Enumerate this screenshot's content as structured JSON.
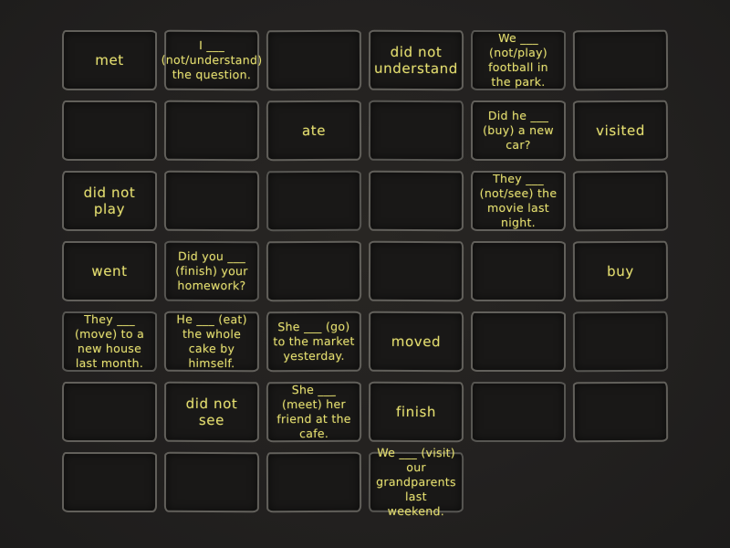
{
  "app": {
    "name": "past-simple-match-up-game"
  },
  "colors": {
    "background": "#232120",
    "card_fill": "#191817",
    "card_border": "#9e9c94",
    "card_text": "#e3dd6f"
  },
  "grid": {
    "columns": 6,
    "rows": 7,
    "card_count": 40
  },
  "cards": [
    {
      "row": 1,
      "col": 1,
      "text": "met"
    },
    {
      "row": 1,
      "col": 2,
      "text": "I ___ (not/understand) the question."
    },
    {
      "row": 1,
      "col": 3,
      "text": ""
    },
    {
      "row": 1,
      "col": 4,
      "text": "did not understand"
    },
    {
      "row": 1,
      "col": 5,
      "text": "We ___ (not/play) football in the park."
    },
    {
      "row": 1,
      "col": 6,
      "text": ""
    },
    {
      "row": 2,
      "col": 1,
      "text": ""
    },
    {
      "row": 2,
      "col": 2,
      "text": ""
    },
    {
      "row": 2,
      "col": 3,
      "text": "ate"
    },
    {
      "row": 2,
      "col": 4,
      "text": ""
    },
    {
      "row": 2,
      "col": 5,
      "text": "Did he ___ (buy) a new car?"
    },
    {
      "row": 2,
      "col": 6,
      "text": "visited"
    },
    {
      "row": 3,
      "col": 1,
      "text": "did not play"
    },
    {
      "row": 3,
      "col": 2,
      "text": ""
    },
    {
      "row": 3,
      "col": 3,
      "text": ""
    },
    {
      "row": 3,
      "col": 4,
      "text": ""
    },
    {
      "row": 3,
      "col": 5,
      "text": "They ___ (not/see) the movie last night."
    },
    {
      "row": 3,
      "col": 6,
      "text": ""
    },
    {
      "row": 4,
      "col": 1,
      "text": "went"
    },
    {
      "row": 4,
      "col": 2,
      "text": "Did you ___ (finish) your homework?"
    },
    {
      "row": 4,
      "col": 3,
      "text": ""
    },
    {
      "row": 4,
      "col": 4,
      "text": ""
    },
    {
      "row": 4,
      "col": 5,
      "text": ""
    },
    {
      "row": 4,
      "col": 6,
      "text": "buy"
    },
    {
      "row": 5,
      "col": 1,
      "text": "They ___ (move) to a new house last month."
    },
    {
      "row": 5,
      "col": 2,
      "text": "He ___ (eat) the whole cake by himself."
    },
    {
      "row": 5,
      "col": 3,
      "text": "She ___ (go) to the market yesterday."
    },
    {
      "row": 5,
      "col": 4,
      "text": "moved"
    },
    {
      "row": 5,
      "col": 5,
      "text": ""
    },
    {
      "row": 5,
      "col": 6,
      "text": ""
    },
    {
      "row": 6,
      "col": 1,
      "text": ""
    },
    {
      "row": 6,
      "col": 2,
      "text": "did not see"
    },
    {
      "row": 6,
      "col": 3,
      "text": "She ___ (meet) her friend at the cafe."
    },
    {
      "row": 6,
      "col": 4,
      "text": "finish"
    },
    {
      "row": 6,
      "col": 5,
      "text": ""
    },
    {
      "row": 6,
      "col": 6,
      "text": ""
    },
    {
      "row": 7,
      "col": 1,
      "text": ""
    },
    {
      "row": 7,
      "col": 2,
      "text": ""
    },
    {
      "row": 7,
      "col": 3,
      "text": ""
    },
    {
      "row": 7,
      "col": 4,
      "text": "We ___ (visit) our grandparents last weekend."
    }
  ]
}
